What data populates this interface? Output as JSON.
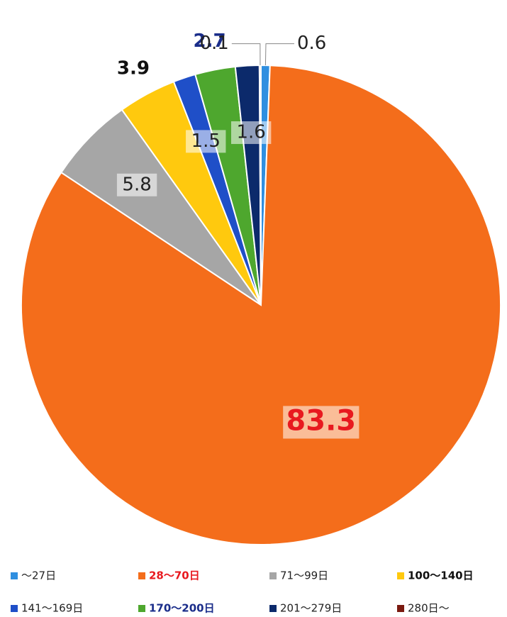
{
  "chart_data": {
    "type": "pie",
    "categories": [
      "～27日",
      "28～70日",
      "71～99日",
      "100～140日",
      "141～169日",
      "170～200日",
      "201～279日",
      "280日～"
    ],
    "values": [
      0.6,
      83.3,
      5.8,
      3.9,
      1.5,
      2.7,
      1.6,
      0.1
    ],
    "colors": [
      "#2f8fe0",
      "#f46d1b",
      "#a6a6a6",
      "#ffc90e",
      "#1f4fc8",
      "#4ea72e",
      "#0c2a6b",
      "#7a1a10"
    ],
    "label_colors": [
      "#222222",
      "#e8191f",
      "#222222",
      "#111111",
      "#222222",
      "#1a2d8a",
      "#222222",
      "#222222"
    ],
    "label_positions": [
      "leader",
      "inside",
      "inside",
      "outside",
      "inside",
      "outside",
      "inside",
      "leader"
    ],
    "legend_text_colors": [
      "#222222",
      "#e8191f",
      "#222222",
      "#111111",
      "#222222",
      "#1a2d8a",
      "#222222",
      "#222222"
    ],
    "legend_position": "bottom"
  }
}
